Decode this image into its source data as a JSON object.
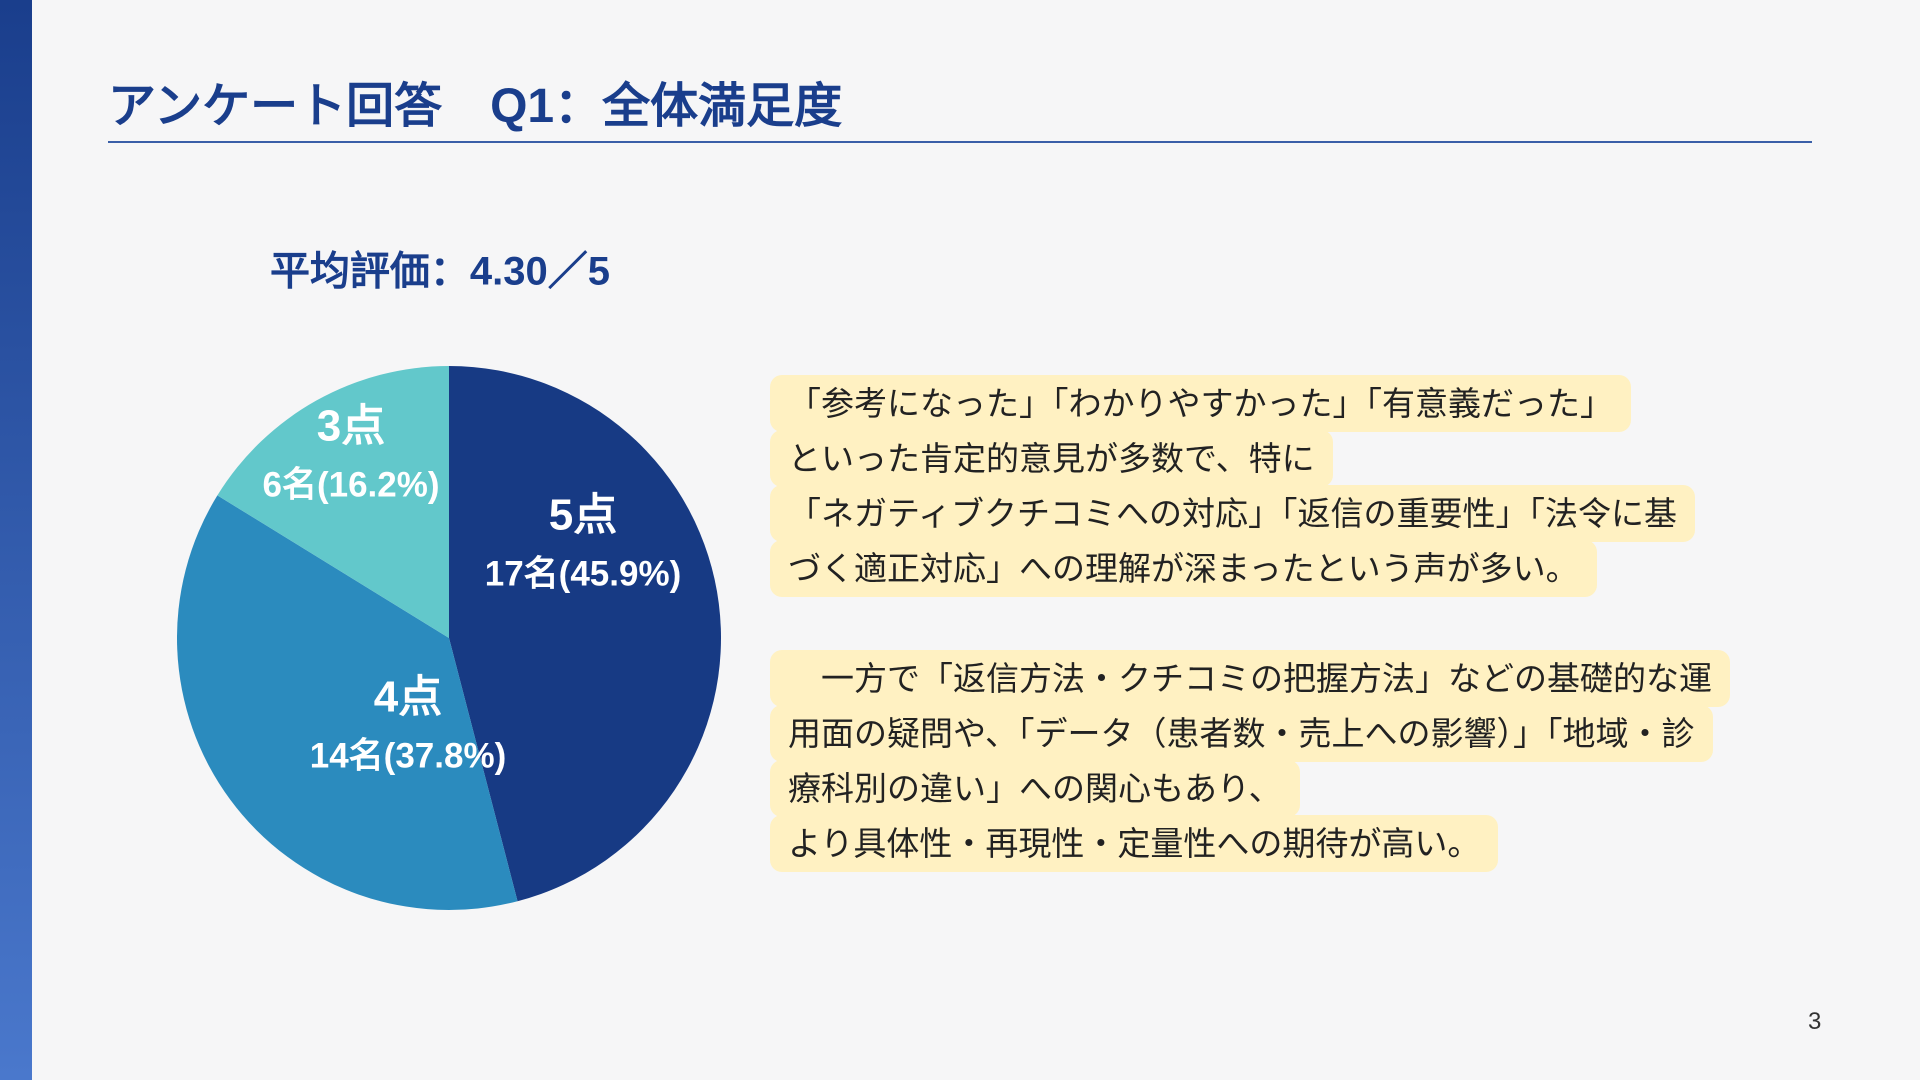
{
  "header": {
    "title": "アンケート回答　Q1：全体満足度"
  },
  "chart_data": {
    "type": "pie",
    "subtitle": "平均評価：4.30／5",
    "categories": [
      "5点",
      "4点",
      "3点"
    ],
    "values": [
      45.9,
      37.8,
      16.2
    ],
    "value_labels": [
      "17名(45.9%)",
      "14名(37.8%)",
      "6名(16.2%)"
    ],
    "colors": [
      "#173a84",
      "#2b8bbe",
      "#62c8cb"
    ]
  },
  "comment": {
    "lines": [
      "「参考になった」「わかりやすかった」「有意義だった」",
      "といった肯定的意見が多数で、特に",
      "「ネガティブクチコミへの対応」「返信の重要性」「法令に基",
      "づく適正対応」への理解が深まったという声が多い。",
      null,
      "　一方で「返信方法・クチコミの把握方法」などの基礎的な運",
      "用面の疑問や、「データ（患者数・売上への影響）」「地域・診",
      "療科別の違い」への関心もあり、",
      "より具体性・再現性・定量性への期待が高い。"
    ]
  },
  "page_number": "3"
}
